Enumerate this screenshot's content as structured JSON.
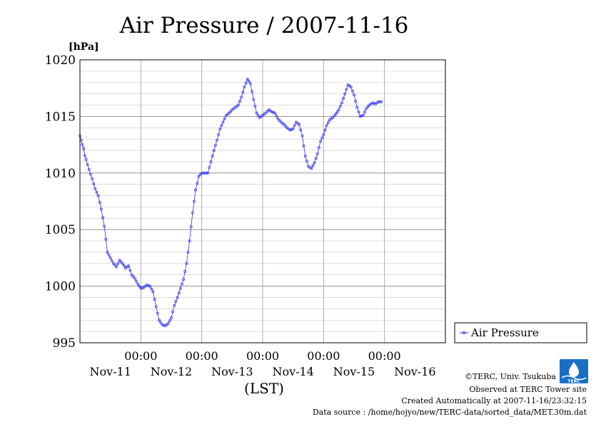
{
  "chart_data": {
    "type": "line",
    "title": "Air Pressure / 2007-11-16",
    "ylabel": "[hPa]",
    "xlabel": "(LST)",
    "ylim": [
      995,
      1020
    ],
    "yticks": [
      995,
      1000,
      1005,
      1010,
      1015,
      1020
    ],
    "ytick_labels": [
      "995",
      "1000",
      "1005",
      "1010",
      "1015",
      "1020"
    ],
    "xlim_days": [
      0,
      6
    ],
    "xtick_time_label": "00:00",
    "day_labels": [
      "Nov-11",
      "Nov-12",
      "Nov-13",
      "Nov-14",
      "Nov-15",
      "Nov-16"
    ],
    "grid": true,
    "legend_position": "right",
    "series": [
      {
        "name": "Air Pressure",
        "color": "#3333ee",
        "marker": "circle",
        "points": [
          [
            0.0,
            1013.3
          ],
          [
            0.04,
            1012.5
          ],
          [
            0.1,
            1011.2
          ],
          [
            0.15,
            1010.3
          ],
          [
            0.2,
            1009.5
          ],
          [
            0.25,
            1008.6
          ],
          [
            0.3,
            1008.0
          ],
          [
            0.35,
            1006.8
          ],
          [
            0.4,
            1005.3
          ],
          [
            0.45,
            1003.0
          ],
          [
            0.5,
            1002.5
          ],
          [
            0.55,
            1002.0
          ],
          [
            0.6,
            1001.7
          ],
          [
            0.65,
            1002.3
          ],
          [
            0.7,
            1002.0
          ],
          [
            0.75,
            1001.6
          ],
          [
            0.8,
            1001.8
          ],
          [
            0.85,
            1001.0
          ],
          [
            0.9,
            1000.7
          ],
          [
            0.95,
            1000.2
          ],
          [
            1.0,
            999.8
          ],
          [
            1.05,
            999.9
          ],
          [
            1.1,
            1000.1
          ],
          [
            1.15,
            1000.0
          ],
          [
            1.2,
            999.5
          ],
          [
            1.25,
            998.2
          ],
          [
            1.3,
            997.0
          ],
          [
            1.35,
            996.6
          ],
          [
            1.4,
            996.5
          ],
          [
            1.45,
            996.7
          ],
          [
            1.5,
            997.2
          ],
          [
            1.55,
            998.3
          ],
          [
            1.6,
            999.0
          ],
          [
            1.65,
            999.8
          ],
          [
            1.7,
            1000.6
          ],
          [
            1.75,
            1002.0
          ],
          [
            1.8,
            1004.0
          ],
          [
            1.85,
            1006.5
          ],
          [
            1.9,
            1008.5
          ],
          [
            1.95,
            1009.7
          ],
          [
            2.0,
            1010.0
          ],
          [
            2.05,
            1010.0
          ],
          [
            2.1,
            1010.0
          ],
          [
            2.15,
            1011.0
          ],
          [
            2.2,
            1012.0
          ],
          [
            2.25,
            1012.9
          ],
          [
            2.3,
            1013.9
          ],
          [
            2.35,
            1014.5
          ],
          [
            2.4,
            1015.1
          ],
          [
            2.45,
            1015.3
          ],
          [
            2.5,
            1015.6
          ],
          [
            2.55,
            1015.8
          ],
          [
            2.6,
            1016.0
          ],
          [
            2.65,
            1016.7
          ],
          [
            2.7,
            1017.6
          ],
          [
            2.75,
            1018.3
          ],
          [
            2.8,
            1017.9
          ],
          [
            2.85,
            1016.5
          ],
          [
            2.9,
            1015.3
          ],
          [
            2.95,
            1014.9
          ],
          [
            3.0,
            1015.1
          ],
          [
            3.05,
            1015.3
          ],
          [
            3.1,
            1015.6
          ],
          [
            3.15,
            1015.4
          ],
          [
            3.2,
            1015.3
          ],
          [
            3.25,
            1014.8
          ],
          [
            3.3,
            1014.5
          ],
          [
            3.35,
            1014.3
          ],
          [
            3.4,
            1014.0
          ],
          [
            3.45,
            1013.8
          ],
          [
            3.5,
            1013.9
          ],
          [
            3.55,
            1014.5
          ],
          [
            3.6,
            1014.3
          ],
          [
            3.65,
            1013.3
          ],
          [
            3.7,
            1011.5
          ],
          [
            3.75,
            1010.6
          ],
          [
            3.8,
            1010.4
          ],
          [
            3.85,
            1010.9
          ],
          [
            3.9,
            1011.7
          ],
          [
            3.95,
            1012.8
          ],
          [
            4.0,
            1013.4
          ],
          [
            4.05,
            1014.2
          ],
          [
            4.1,
            1014.7
          ],
          [
            4.15,
            1014.9
          ],
          [
            4.2,
            1015.2
          ],
          [
            4.25,
            1015.6
          ],
          [
            4.3,
            1016.2
          ],
          [
            4.35,
            1017.0
          ],
          [
            4.4,
            1017.8
          ],
          [
            4.45,
            1017.6
          ],
          [
            4.5,
            1016.9
          ],
          [
            4.55,
            1015.8
          ],
          [
            4.6,
            1015.0
          ],
          [
            4.65,
            1015.1
          ],
          [
            4.7,
            1015.7
          ],
          [
            4.75,
            1016.0
          ],
          [
            4.8,
            1016.2
          ],
          [
            4.85,
            1016.1
          ],
          [
            4.9,
            1016.3
          ],
          [
            4.95,
            1016.3
          ]
        ]
      }
    ]
  },
  "legend": {
    "label": "Air Pressure"
  },
  "footer": {
    "copyright": "©TERC, Univ. Tsukuba",
    "observed": "Observed at TERC Tower site",
    "created": "Created Automatically at 2007-11-16/23:32:15",
    "source": "Data source : /home/hojyo/new/TERC-data/sorted_data/MET.30m.dat"
  },
  "logo": {
    "text": "TERC",
    "color": "#1a6fc4"
  }
}
